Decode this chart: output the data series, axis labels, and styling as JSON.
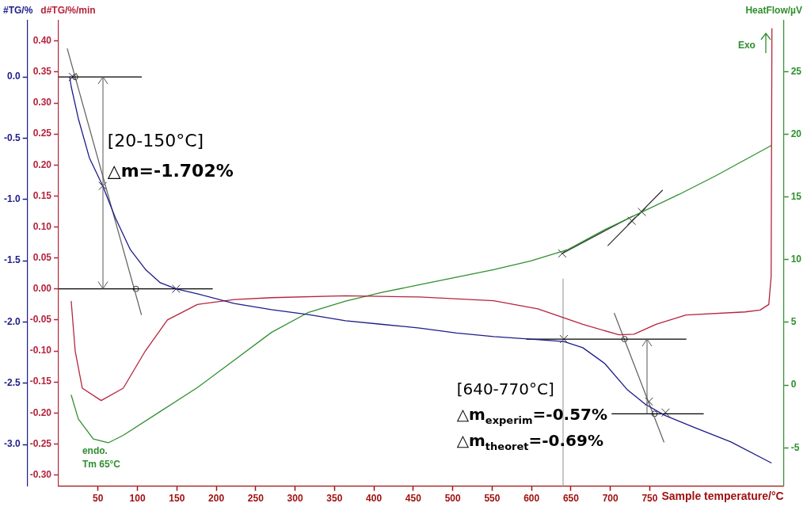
{
  "chart_data": {
    "type": "line",
    "xlabel": "Sample temperature/°C",
    "ylabel": "#TG/%",
    "y2label": "d#TG/%/min",
    "y3label": "HeatFlow/µV",
    "xlim": [
      0,
      920
    ],
    "xticks": [
      50,
      100,
      150,
      200,
      250,
      300,
      350,
      400,
      450,
      500,
      550,
      600,
      650,
      700,
      750
    ],
    "ylim": [
      -3.34,
      0.46
    ],
    "yticks": [
      {
        "value": 0,
        "label": "0.0"
      },
      {
        "value": -0.5,
        "label": "-0.5"
      },
      {
        "value": -1,
        "label": "-1.0"
      },
      {
        "value": -1.5,
        "label": "-1.5"
      },
      {
        "value": -2,
        "label": "-2.0"
      },
      {
        "value": -2.5,
        "label": "-2.5"
      },
      {
        "value": -3,
        "label": "-3.0"
      }
    ],
    "y2lim": [
      -0.318,
      0.433
    ],
    "y2ticks": [
      {
        "value": 0.4,
        "label": "0.40"
      },
      {
        "value": 0.35,
        "label": "0.35"
      },
      {
        "value": 0.3,
        "label": "0.30"
      },
      {
        "value": 0.25,
        "label": "0.25"
      },
      {
        "value": 0.2,
        "label": "0.20"
      },
      {
        "value": 0.15,
        "label": "0.15"
      },
      {
        "value": 0.1,
        "label": "0.10"
      },
      {
        "value": 0.05,
        "label": "0.05"
      },
      {
        "value": 0,
        "label": "0.00"
      },
      {
        "value": -0.05,
        "label": "-0.05"
      },
      {
        "value": -0.1,
        "label": "-0.10"
      },
      {
        "value": -0.15,
        "label": "-0.15"
      },
      {
        "value": -0.2,
        "label": "-0.20"
      },
      {
        "value": -0.25,
        "label": "-0.25"
      },
      {
        "value": -0.3,
        "label": "-0.30"
      }
    ],
    "y3lim": [
      -8.05,
      29.06
    ],
    "y3ticks": [
      25,
      20,
      15,
      10,
      5,
      0,
      -5
    ],
    "grid": false,
    "legend": false,
    "series": [
      {
        "color": "#1c1c8a",
        "axis": "y",
        "x": [
          14,
          16,
          25,
          39,
          56,
          72,
          91,
          110,
          129,
          149,
          176,
          223,
          270,
          317,
          364,
          411,
          458,
          505,
          552,
          599,
          641,
          665,
          693,
          721,
          744,
          768,
          806,
          853,
          904
        ],
        "values": [
          0,
          -0.08,
          -0.34,
          -0.66,
          -0.89,
          -1.15,
          -1.41,
          -1.57,
          -1.68,
          -1.73,
          -1.77,
          -1.85,
          -1.9,
          -1.94,
          -1.99,
          -2.02,
          -2.05,
          -2.09,
          -2.12,
          -2.14,
          -2.16,
          -2.21,
          -2.34,
          -2.55,
          -2.67,
          -2.76,
          -2.86,
          -2.98,
          -3.15
        ]
      },
      {
        "color": "#b5243b",
        "axis": "y2",
        "x": [
          16,
          21,
          30,
          54,
          82,
          110,
          138,
          176,
          223,
          270,
          364,
          458,
          552,
          608,
          665,
          711,
          730,
          758,
          796,
          871,
          890,
          901,
          904,
          905
        ],
        "values": [
          -0.02,
          -0.1,
          -0.16,
          -0.18,
          -0.16,
          -0.1,
          -0.05,
          -0.025,
          -0.017,
          -0.014,
          -0.011,
          -0.013,
          -0.019,
          -0.032,
          -0.057,
          -0.074,
          -0.073,
          -0.057,
          -0.042,
          -0.037,
          -0.034,
          -0.025,
          0.02,
          0.42
        ]
      },
      {
        "color": "#2f8f2f",
        "axis": "y3",
        "x": [
          16,
          25,
          44,
          63,
          82,
          129,
          176,
          223,
          270,
          317,
          364,
          411,
          458,
          505,
          552,
          599,
          646,
          693,
          740,
          787,
          834,
          904
        ],
        "values": [
          -0.8,
          -2.7,
          -4.3,
          -4.6,
          -4,
          -2.1,
          -0.2,
          2,
          4.2,
          5.8,
          6.7,
          7.4,
          8,
          8.6,
          9.2,
          9.9,
          10.8,
          12.4,
          13.8,
          15.2,
          16.7,
          19.1
        ]
      },
      {
        "color": "#000000",
        "axis": "y",
        "x": [
          0,
          105
        ],
        "values": [
          0,
          0
        ]
      },
      {
        "color": "#000000",
        "axis": "y",
        "x": [
          0,
          195
        ],
        "values": [
          -1.73,
          -1.73
        ]
      },
      {
        "color": "#666666",
        "axis": "y",
        "x": [
          11,
          105
        ],
        "values": [
          0.23,
          -1.94
        ]
      },
      {
        "color": "#000000",
        "axis": "y",
        "x": [
          594,
          796
        ],
        "values": [
          -2.14,
          -2.14
        ]
      },
      {
        "color": "#000000",
        "axis": "y",
        "x": [
          702,
          818
        ],
        "values": [
          -2.75,
          -2.75
        ]
      },
      {
        "color": "#666666",
        "axis": "y",
        "x": [
          705,
          768
        ],
        "values": [
          -1.93,
          -2.98
        ]
      },
      {
        "color": "#aaaaaa",
        "axis": "y",
        "x": [
          640,
          640
        ],
        "values": [
          -1.65,
          -3.34
        ]
      },
      {
        "color": "#333333",
        "axis": "y3",
        "x": [
          639,
          728
        ],
        "values": [
          10.5,
          13.46
        ]
      },
      {
        "color": "#333333",
        "axis": "y3",
        "x": [
          697,
          766
        ],
        "values": [
          11.13,
          15.53
        ]
      },
      {
        "type": "scatter",
        "marker": "cross",
        "color": "#333333",
        "axis": "y",
        "x": [
          18,
          56,
          149,
          641,
          749,
          770
        ],
        "values": [
          0,
          -0.89,
          -1.73,
          -2.14,
          -2.65,
          -2.74
        ]
      },
      {
        "type": "scatter",
        "marker": "cross",
        "color": "#333333",
        "axis": "y3",
        "x": [
          639,
          727,
          740
        ],
        "values": [
          10.5,
          13.1,
          13.8
        ]
      },
      {
        "type": "scatter",
        "marker": "circle",
        "color": "#333333",
        "axis": "y",
        "x": [
          21,
          98,
          718,
          756
        ],
        "values": [
          0,
          -1.73,
          -2.14,
          -2.75
        ]
      }
    ],
    "annotations": [
      "[20-150°C]",
      "△m=-1.702%",
      "[640-770°C]",
      "△m$_{experim}$=-0.57%",
      "△m$_{theoret}$=-0.69%",
      "endo.",
      "Tm 65°C",
      "Exo"
    ]
  }
}
